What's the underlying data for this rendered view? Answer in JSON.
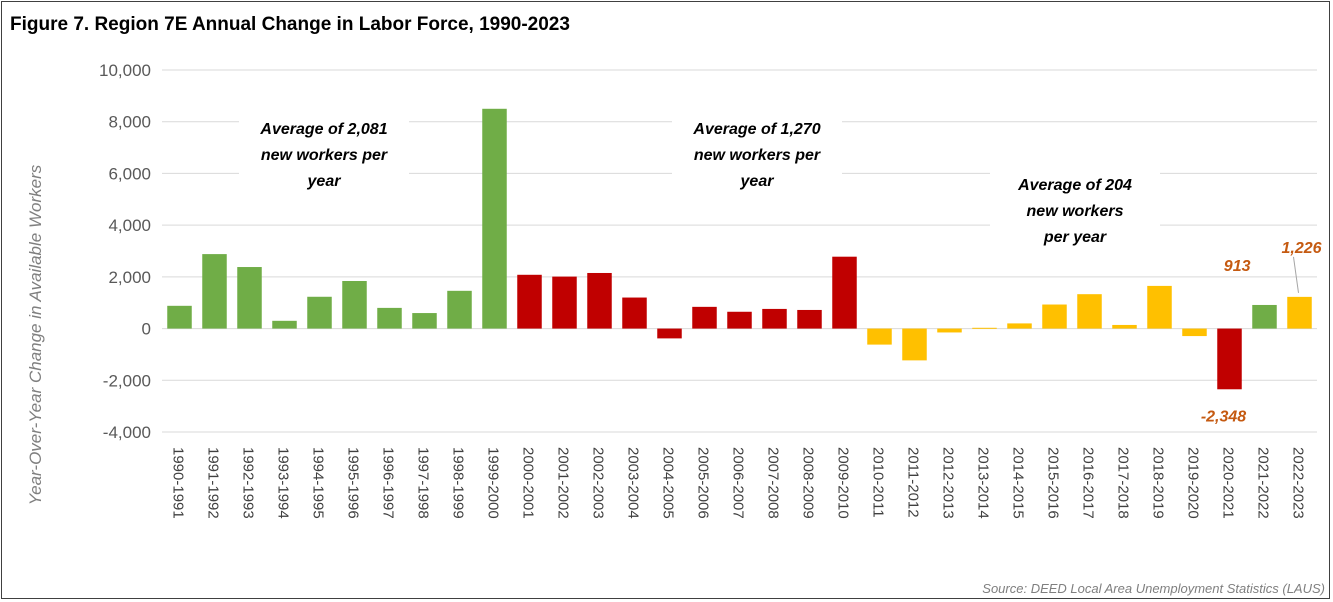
{
  "title": "Figure 7. Region 7E Annual Change in Labor Force, 1990-2023",
  "source": "Source: DEED Local Area Unemployment Statistics (LAUS)",
  "colors": {
    "period1": "#70ad47",
    "period2": "#c00000",
    "period3": "#ffc000",
    "gridline": "#d9d9d9",
    "data_label": "#c55a11"
  },
  "chart_data": {
    "type": "bar",
    "title": "Figure 7. Region 7E Annual Change in Labor Force, 1990-2023",
    "xlabel": "",
    "ylabel": "Year-Over-Year Change in Available Workers",
    "ylim": [
      -4000,
      10000
    ],
    "yticks": [
      10000,
      8000,
      6000,
      4000,
      2000,
      0,
      -2000,
      -4000
    ],
    "ytick_labels": [
      "10,000",
      "8,000",
      "6,000",
      "4,000",
      "2,000",
      "0",
      "-2,000",
      "-4,000"
    ],
    "grid": true,
    "categories": [
      "1990-1991",
      "1991-1992",
      "1992-1993",
      "1993-1994",
      "1994-1995",
      "1995-1996",
      "1996-1997",
      "1997-1998",
      "1998-1999",
      "1999-2000",
      "2000-2001",
      "2001-2002",
      "2002-2003",
      "2003-2004",
      "2004-2005",
      "2005-2006",
      "2006-2007",
      "2007-2008",
      "2008-2009",
      "2009-2010",
      "2010-2011",
      "2011-2012",
      "2012-2013",
      "2013-2014",
      "2014-2015",
      "2015-2016",
      "2016-2017",
      "2017-2018",
      "2018-2019",
      "2019-2020",
      "2020-2021",
      "2021-2022",
      "2022-2023"
    ],
    "values": [
      880,
      2880,
      2380,
      300,
      1230,
      1840,
      800,
      600,
      1460,
      8500,
      2080,
      2010,
      2150,
      1200,
      -380,
      840,
      650,
      760,
      720,
      2780,
      -620,
      -1230,
      -150,
      30,
      200,
      930,
      1330,
      140,
      1650,
      -290,
      -2348,
      913,
      1226
    ],
    "bar_colors": [
      "#70ad47",
      "#70ad47",
      "#70ad47",
      "#70ad47",
      "#70ad47",
      "#70ad47",
      "#70ad47",
      "#70ad47",
      "#70ad47",
      "#70ad47",
      "#c00000",
      "#c00000",
      "#c00000",
      "#c00000",
      "#c00000",
      "#c00000",
      "#c00000",
      "#c00000",
      "#c00000",
      "#c00000",
      "#ffc000",
      "#ffc000",
      "#ffc000",
      "#ffc000",
      "#ffc000",
      "#ffc000",
      "#ffc000",
      "#ffc000",
      "#ffc000",
      "#ffc000",
      "#c00000",
      "#70ad47",
      "#ffc000"
    ],
    "data_labels": [
      {
        "index": 30,
        "text": "-2,348"
      },
      {
        "index": 31,
        "text": "913"
      },
      {
        "index": 32,
        "text": "1,226"
      }
    ],
    "annotations": [
      {
        "lines": [
          "Average of 2,081",
          "new workers per",
          "year"
        ]
      },
      {
        "lines": [
          "Average of 1,270",
          "new workers per",
          "year"
        ]
      },
      {
        "lines": [
          "Average of 204",
          "new workers",
          "per year"
        ]
      }
    ]
  }
}
